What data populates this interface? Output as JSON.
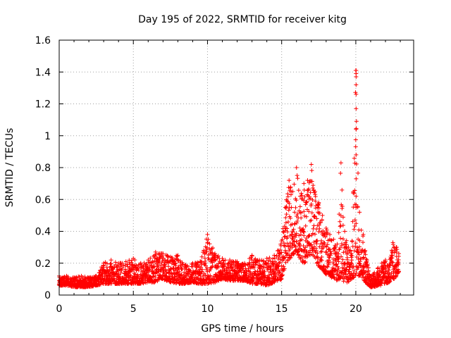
{
  "chart_data": {
    "type": "scatter",
    "title": "Day 195 of 2022, SRMTID for receiver kitg",
    "xlabel": "GPS time / hours",
    "ylabel": "SRMTID / TECUs",
    "xlim": [
      0,
      23.9
    ],
    "ylim": [
      0,
      1.6
    ],
    "x_ticks": [
      0,
      5,
      10,
      15,
      20
    ],
    "x_tick_labels": [
      "0",
      "5",
      "10",
      "15",
      "20"
    ],
    "y_ticks": [
      0,
      0.2,
      0.4,
      0.6,
      0.8,
      1.0,
      1.2,
      1.4,
      1.6
    ],
    "y_tick_labels": [
      "0",
      "0.2",
      "0.4",
      "0.6",
      "0.8",
      "1",
      "1.2",
      "1.4",
      "1.6"
    ],
    "grid": true,
    "marker": "+",
    "marker_color": "#ff0000",
    "series": [
      {
        "name": "kitg",
        "envelope_hours": [
          0,
          0.5,
          1,
          1.5,
          2,
          2.5,
          3,
          3.5,
          4,
          4.5,
          5,
          5.5,
          6,
          6.5,
          7,
          7.5,
          8,
          8.5,
          9,
          9.5,
          10,
          10.5,
          11,
          11.5,
          12,
          12.5,
          13,
          13.5,
          14,
          14.5,
          15,
          15.25,
          15.5,
          15.75,
          16,
          16.25,
          16.5,
          16.75,
          17,
          17.25,
          17.5,
          17.75,
          18,
          18.25,
          18.5,
          18.75,
          19,
          19.25,
          19.5,
          19.75,
          20,
          20.25,
          20.5,
          20.75,
          21,
          21.25,
          21.5,
          21.75,
          22,
          22.25,
          22.5,
          22.75,
          22.9
        ],
        "envelope_low": [
          0.06,
          0.06,
          0.05,
          0.05,
          0.05,
          0.06,
          0.07,
          0.07,
          0.07,
          0.07,
          0.07,
          0.07,
          0.08,
          0.08,
          0.1,
          0.08,
          0.07,
          0.07,
          0.08,
          0.07,
          0.07,
          0.08,
          0.1,
          0.09,
          0.09,
          0.09,
          0.07,
          0.07,
          0.06,
          0.08,
          0.1,
          0.18,
          0.22,
          0.25,
          0.28,
          0.22,
          0.2,
          0.22,
          0.25,
          0.2,
          0.18,
          0.16,
          0.13,
          0.12,
          0.1,
          0.09,
          0.1,
          0.08,
          0.08,
          0.1,
          0.12,
          0.12,
          0.1,
          0.07,
          0.05,
          0.05,
          0.06,
          0.06,
          0.07,
          0.08,
          0.09,
          0.12,
          0.14
        ],
        "envelope_high": [
          0.12,
          0.12,
          0.11,
          0.12,
          0.11,
          0.12,
          0.2,
          0.22,
          0.2,
          0.21,
          0.23,
          0.2,
          0.22,
          0.27,
          0.26,
          0.24,
          0.25,
          0.19,
          0.2,
          0.21,
          0.38,
          0.26,
          0.23,
          0.22,
          0.21,
          0.2,
          0.25,
          0.22,
          0.23,
          0.25,
          0.34,
          0.55,
          0.72,
          0.65,
          0.8,
          0.62,
          0.7,
          0.72,
          0.82,
          0.65,
          0.58,
          0.5,
          0.42,
          0.38,
          0.35,
          0.32,
          0.83,
          0.4,
          0.3,
          0.34,
          1.41,
          0.52,
          0.38,
          0.22,
          0.12,
          0.14,
          0.17,
          0.2,
          0.22,
          0.19,
          0.33,
          0.3,
          0.26
        ]
      }
    ]
  }
}
